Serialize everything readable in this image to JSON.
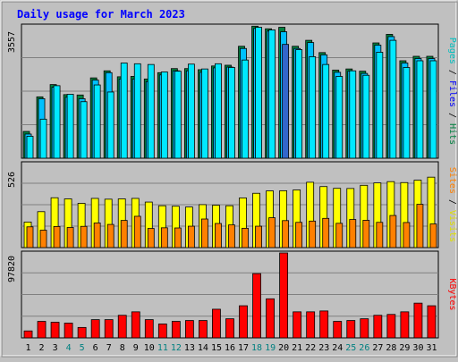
{
  "chart_data": {
    "type": "bar",
    "title": "Daily usage for March 2023",
    "colors": {
      "background": "#c0c0c0",
      "title": "#0000ff",
      "hits": "#008040",
      "files": "#00c0ff",
      "pages": "#00e8ff",
      "visits": "#ffff00",
      "sites": "#ff8000",
      "kbytes": "#ff0000",
      "highlight": "#3366cc",
      "weekend_label": "#008080"
    },
    "categories": [
      "1",
      "2",
      "3",
      "4",
      "5",
      "6",
      "7",
      "8",
      "9",
      "10",
      "11",
      "12",
      "13",
      "14",
      "15",
      "16",
      "17",
      "18",
      "19",
      "20",
      "21",
      "22",
      "23",
      "24",
      "25",
      "26",
      "27",
      "28",
      "29",
      "30",
      "31"
    ],
    "weekend_days": [
      "4",
      "5",
      "11",
      "12",
      "18",
      "19",
      "25",
      "26"
    ],
    "highlight_day": "20",
    "panels": [
      {
        "id": "top",
        "ymax_label": "3557",
        "ymax": 3557,
        "legend": [
          {
            "text": "Pages",
            "color": "#00c0c0"
          },
          {
            "text": " / ",
            "color": "#000000"
          },
          {
            "text": "Files",
            "color": "#0000ff"
          },
          {
            "text": " / ",
            "color": "#000000"
          },
          {
            "text": "Hits",
            "color": "#008040"
          }
        ],
        "series": [
          {
            "name": "Hits",
            "values": [
              720,
              1650,
              1980,
              1710,
              1700,
              2160,
              2350,
              2190,
              2200,
              2130,
              2300,
              2410,
              2410,
              2380,
              2480,
              2500,
              3010,
              3550,
              3480,
              3520,
              3010,
              3170,
              2840,
              2370,
              2400,
              2340,
              3100,
              3330,
              2620,
              2740,
              2740
            ]
          },
          {
            "name": "Files",
            "values": [
              650,
              1600,
              1910,
              1640,
              1600,
              2100,
              2300,
              2130,
              2130,
              2060,
              2240,
              2350,
              2350,
              2310,
              2430,
              2450,
              2950,
              3490,
              3420,
              3400,
              2950,
              3110,
              2780,
              2310,
              2340,
              2280,
              3040,
              3270,
              2560,
              2680,
              2680
            ]
          },
          {
            "name": "Pages",
            "values": [
              590,
              1050,
              1950,
              1720,
              1520,
              1970,
              1780,
              2560,
              2540,
              2520,
              2320,
              2340,
              2530,
              2400,
              2540,
              2440,
              2640,
              3520,
              3450,
              3060,
              2920,
              2730,
              2520,
              2200,
              2350,
              2230,
              2850,
              3170,
              2440,
              2620,
              2620
            ]
          }
        ]
      },
      {
        "id": "middle",
        "ymax_label": "526",
        "ymax": 526,
        "legend": [
          {
            "text": "Sites",
            "color": "#ff8000"
          },
          {
            "text": " / ",
            "color": "#000000"
          },
          {
            "text": "Visits",
            "color": "#e0e000"
          }
        ],
        "series": [
          {
            "name": "Visits",
            "values": [
              160,
              225,
              312,
              305,
              277,
              308,
              303,
              305,
              308,
              285,
              262,
              259,
              254,
              269,
              265,
              262,
              311,
              340,
              355,
              356,
              361,
              409,
              382,
              371,
              370,
              390,
              405,
              413,
              407,
              422,
              441
            ]
          },
          {
            "name": "Sites",
            "values": [
              130,
              109,
              132,
              126,
              133,
              154,
              145,
              170,
              196,
              120,
              124,
              123,
              134,
              179,
              151,
              142,
              121,
              134,
              187,
              169,
              158,
              166,
              183,
              152,
              176,
              171,
              158,
              201,
              157,
              271,
              148
            ]
          }
        ]
      },
      {
        "id": "bottom",
        "ymax_label": "97820",
        "ymax": 97820,
        "legend": [
          {
            "text": "KBytes",
            "color": "#ff0000"
          }
        ],
        "series": [
          {
            "name": "KBytes",
            "values": [
              8000,
              19000,
              18000,
              17000,
              12000,
              21000,
              21000,
              26000,
              30000,
              21000,
              16000,
              19000,
              20000,
              20000,
              33000,
              22000,
              37000,
              74000,
              45000,
              97820,
              30000,
              30000,
              31000,
              19000,
              20000,
              22000,
              26000,
              27000,
              30000,
              40000,
              37000
            ]
          }
        ]
      }
    ]
  }
}
